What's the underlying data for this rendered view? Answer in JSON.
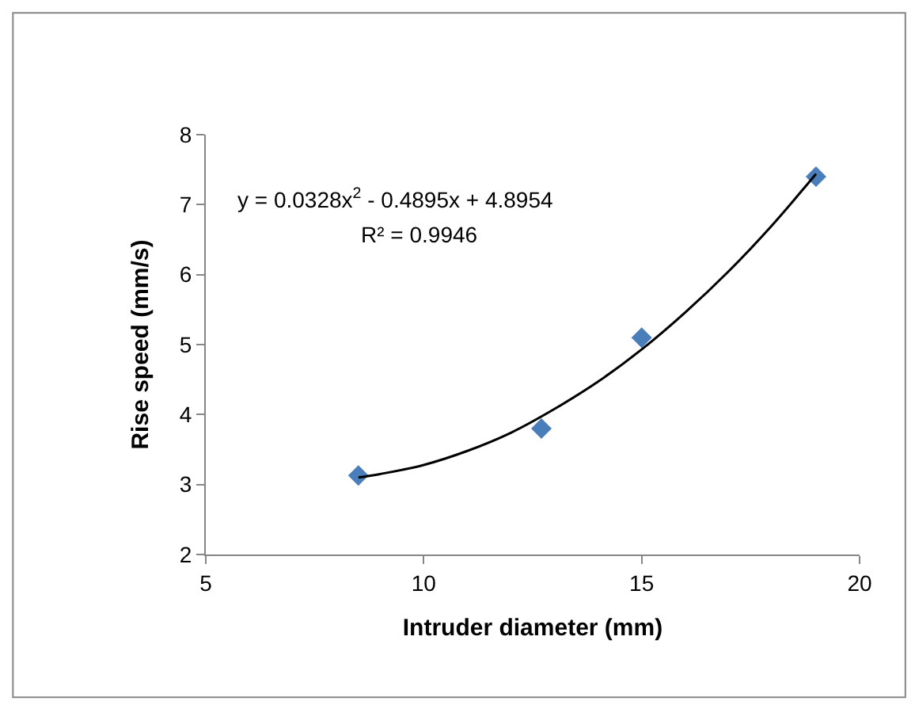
{
  "chart_data": {
    "type": "scatter",
    "xlabel": "Intruder diameter (mm)",
    "ylabel": "Rise speed (mm/s)",
    "series": [
      {
        "color": "#4a7ebb",
        "marker": "diamond",
        "x": [
          8.5,
          12.7,
          15,
          19
        ],
        "values": [
          3.13,
          3.8,
          5.1,
          7.4
        ]
      },
      {
        "type": "line",
        "color": "#000000",
        "x": [
          8.5,
          9,
          10,
          11,
          12,
          13,
          14,
          15,
          16,
          17,
          18,
          19
        ],
        "values": [
          3.1,
          3.15,
          3.28,
          3.48,
          3.74,
          4.08,
          4.47,
          4.93,
          5.46,
          6.05,
          6.71,
          7.44
        ]
      }
    ],
    "annotations": [
      "y = 0.0328x$^{2}$ - 0.4895x + 4.8954",
      "R² = 0.9946"
    ],
    "xlim": [
      5,
      20
    ],
    "xticks": [
      5,
      10,
      15,
      20
    ],
    "ylim": [
      2,
      8
    ],
    "yticks": [
      2,
      3,
      4,
      5,
      6,
      7,
      8
    ]
  }
}
